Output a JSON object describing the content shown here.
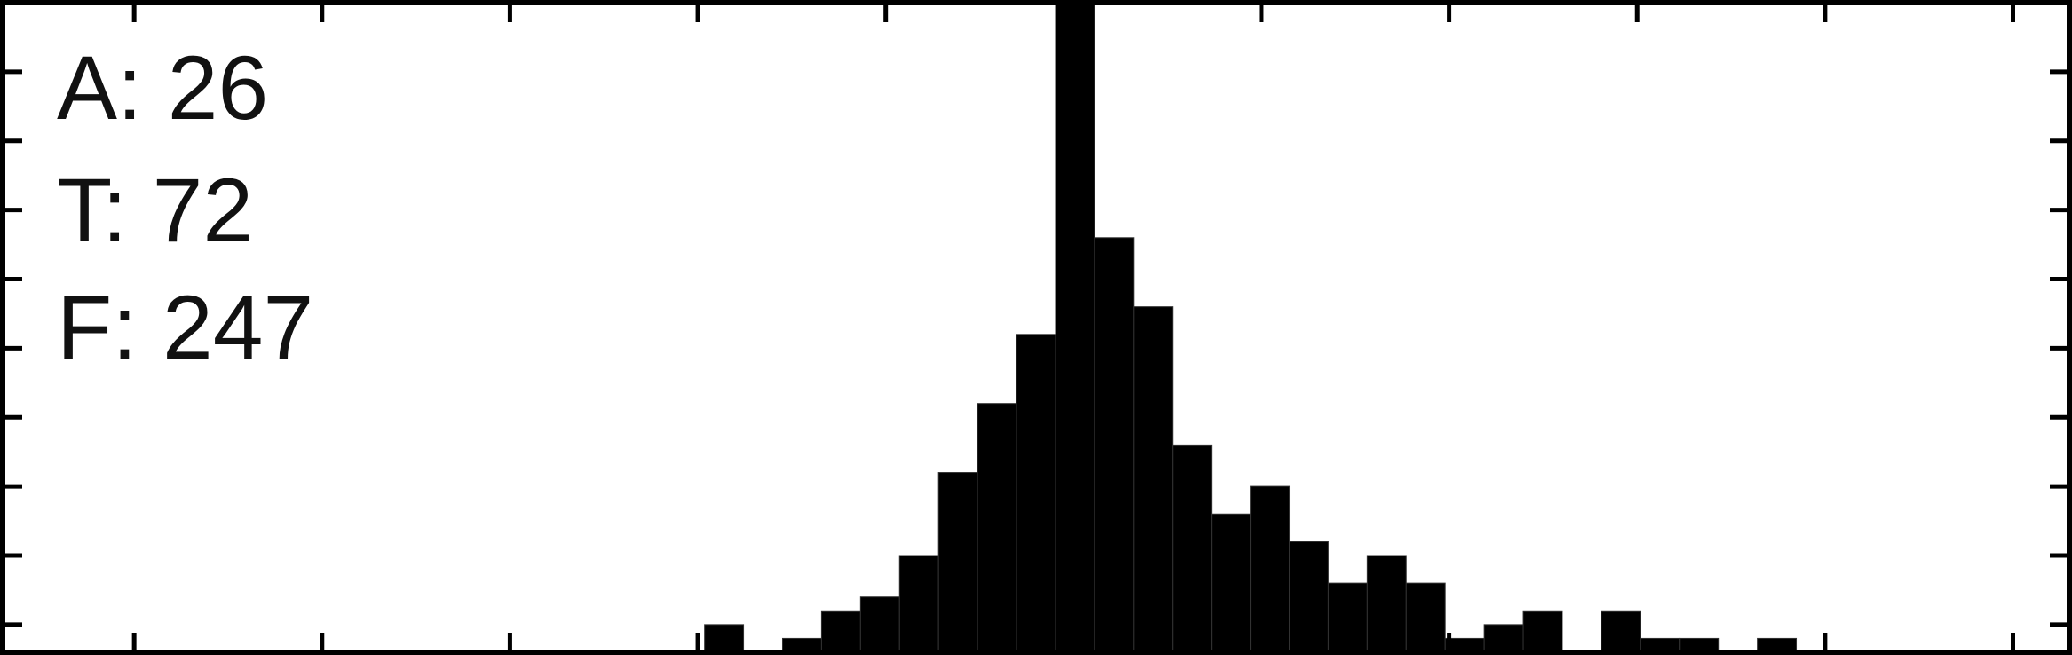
{
  "chart_data": {
    "type": "bar",
    "title": "",
    "xlabel": "",
    "ylabel": "",
    "xlim": [
      0,
      53
    ],
    "ylim": [
      0,
      47
    ],
    "x_tick_count": 11,
    "y_tick_count": 9,
    "grid": false,
    "bar_color": "#000000",
    "frame_color": "#000000",
    "annotations": [
      "A: 26",
      "T: 72",
      "F: 247"
    ],
    "bins": [
      {
        "start": 18,
        "end": 19,
        "count": 2
      },
      {
        "start": 20,
        "end": 21,
        "count": 1
      },
      {
        "start": 21,
        "end": 22,
        "count": 3
      },
      {
        "start": 22,
        "end": 23,
        "count": 4
      },
      {
        "start": 23,
        "end": 24,
        "count": 7
      },
      {
        "start": 24,
        "end": 25,
        "count": 13
      },
      {
        "start": 25,
        "end": 26,
        "count": 18
      },
      {
        "start": 26,
        "end": 27,
        "count": 23
      },
      {
        "start": 27,
        "end": 28,
        "count": 47
      },
      {
        "start": 28,
        "end": 29,
        "count": 30
      },
      {
        "start": 29,
        "end": 30,
        "count": 25
      },
      {
        "start": 30,
        "end": 31,
        "count": 15
      },
      {
        "start": 31,
        "end": 32,
        "count": 10
      },
      {
        "start": 32,
        "end": 33,
        "count": 12
      },
      {
        "start": 33,
        "end": 34,
        "count": 8
      },
      {
        "start": 34,
        "end": 35,
        "count": 5
      },
      {
        "start": 35,
        "end": 36,
        "count": 7
      },
      {
        "start": 36,
        "end": 37,
        "count": 5
      },
      {
        "start": 37,
        "end": 38,
        "count": 1
      },
      {
        "start": 38,
        "end": 39,
        "count": 2
      },
      {
        "start": 39,
        "end": 40,
        "count": 3
      },
      {
        "start": 41,
        "end": 42,
        "count": 3
      },
      {
        "start": 42,
        "end": 43,
        "count": 1
      },
      {
        "start": 43,
        "end": 44,
        "count": 1
      },
      {
        "start": 45,
        "end": 46,
        "count": 1
      }
    ]
  }
}
